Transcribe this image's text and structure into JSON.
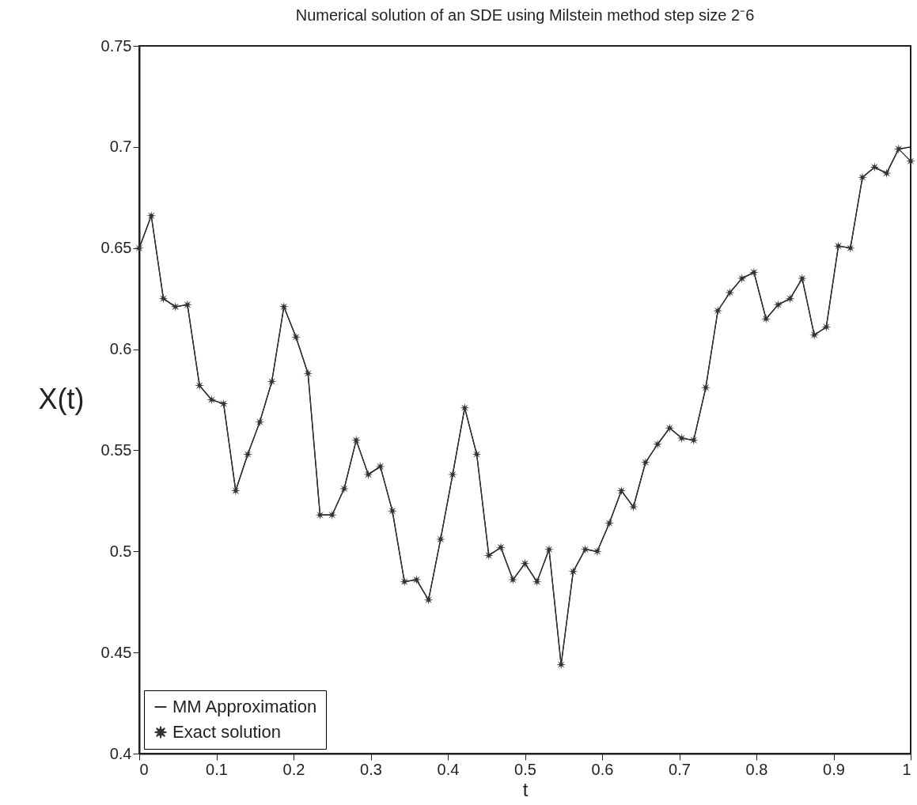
{
  "chart_data": {
    "type": "line",
    "title": "Numerical solution of an SDE using Milstein method step size 2⁻6",
    "xlabel": "t",
    "ylabel": "X(t)",
    "x": [
      0,
      0.015625,
      0.03125,
      0.046875,
      0.0625,
      0.078125,
      0.09375,
      0.109375,
      0.125,
      0.140625,
      0.15625,
      0.171875,
      0.1875,
      0.203125,
      0.21875,
      0.234375,
      0.25,
      0.265625,
      0.28125,
      0.296875,
      0.3125,
      0.328125,
      0.34375,
      0.359375,
      0.375,
      0.390625,
      0.40625,
      0.421875,
      0.4375,
      0.453125,
      0.46875,
      0.484375,
      0.5,
      0.515625,
      0.53125,
      0.546875,
      0.5625,
      0.578125,
      0.59375,
      0.609375,
      0.625,
      0.640625,
      0.65625,
      0.671875,
      0.6875,
      0.703125,
      0.71875,
      0.734375,
      0.75,
      0.765625,
      0.78125,
      0.796875,
      0.8125,
      0.828125,
      0.84375,
      0.859375,
      0.875,
      0.890625,
      0.90625,
      0.921875,
      0.9375,
      0.953125,
      0.96875,
      0.984375,
      1
    ],
    "series": [
      {
        "name": "MM Approximation",
        "color": "#000000",
        "marker": "none",
        "values": [
          0.65,
          0.666,
          0.625,
          0.621,
          0.622,
          0.582,
          0.575,
          0.573,
          0.53,
          0.548,
          0.564,
          0.584,
          0.621,
          0.606,
          0.588,
          0.518,
          0.518,
          0.531,
          0.555,
          0.538,
          0.542,
          0.52,
          0.485,
          0.486,
          0.476,
          0.506,
          0.538,
          0.571,
          0.548,
          0.498,
          0.502,
          0.486,
          0.494,
          0.485,
          0.501,
          0.444,
          0.49,
          0.501,
          0.5,
          0.514,
          0.53,
          0.522,
          0.544,
          0.553,
          0.561,
          0.556,
          0.555,
          0.581,
          0.619,
          0.628,
          0.635,
          0.638,
          0.615,
          0.622,
          0.625,
          0.635,
          0.607,
          0.611,
          0.651,
          0.65,
          0.685,
          0.69,
          0.687,
          0.699,
          0.7
        ]
      },
      {
        "name": "Exact solution",
        "color": "#333333",
        "marker": "star",
        "values": [
          0.65,
          0.666,
          0.625,
          0.621,
          0.622,
          0.582,
          0.575,
          0.573,
          0.53,
          0.548,
          0.564,
          0.584,
          0.621,
          0.606,
          0.588,
          0.518,
          0.518,
          0.531,
          0.555,
          0.538,
          0.542,
          0.52,
          0.485,
          0.486,
          0.476,
          0.506,
          0.538,
          0.571,
          0.548,
          0.498,
          0.502,
          0.486,
          0.494,
          0.485,
          0.501,
          0.444,
          0.49,
          0.501,
          0.5,
          0.514,
          0.53,
          0.522,
          0.544,
          0.553,
          0.561,
          0.556,
          0.555,
          0.581,
          0.619,
          0.628,
          0.635,
          0.638,
          0.615,
          0.622,
          0.625,
          0.635,
          0.607,
          0.611,
          0.651,
          0.65,
          0.685,
          0.69,
          0.687,
          0.699,
          0.693
        ]
      }
    ],
    "xlim": [
      0,
      1
    ],
    "xticks": [
      0,
      0.1,
      0.2,
      0.3,
      0.4,
      0.5,
      0.6,
      0.7,
      0.8,
      0.9,
      1
    ],
    "ylim": [
      0.4,
      0.75
    ],
    "yticks": [
      0.4,
      0.45,
      0.5,
      0.55,
      0.6,
      0.65,
      0.7,
      0.75
    ],
    "grid": false,
    "legend": "bottom left",
    "line_style": "solid"
  }
}
